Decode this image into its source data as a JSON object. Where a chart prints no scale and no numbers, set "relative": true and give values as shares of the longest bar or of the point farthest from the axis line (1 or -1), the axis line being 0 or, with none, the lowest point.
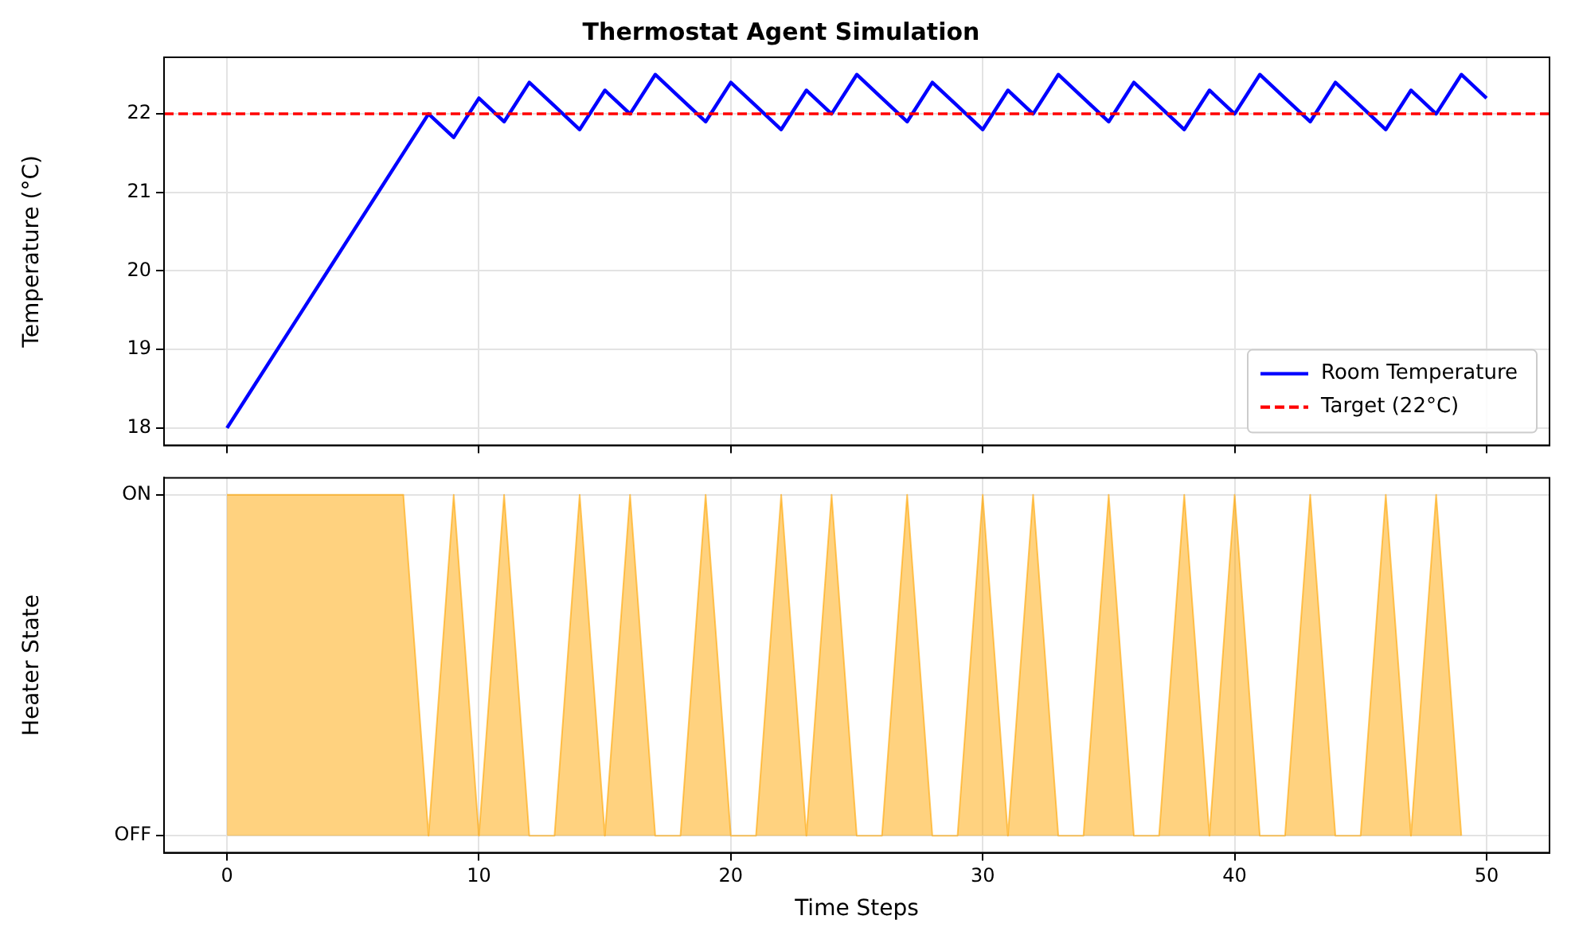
{
  "chart_data": [
    {
      "type": "line",
      "title": "Thermostat Agent Simulation",
      "ylabel": "Temperature (°C)",
      "x": [
        0,
        1,
        2,
        3,
        4,
        5,
        6,
        7,
        8,
        9,
        10,
        11,
        12,
        13,
        14,
        15,
        16,
        17,
        18,
        19,
        20,
        21,
        22,
        23,
        24,
        25,
        26,
        27,
        28,
        29,
        30,
        31,
        32,
        33,
        34,
        35,
        36,
        37,
        38,
        39,
        40,
        41,
        42,
        43,
        44,
        45,
        46,
        47,
        48,
        49,
        50
      ],
      "series": [
        {
          "name": "Room Temperature",
          "color": "#0000ff",
          "values": [
            18,
            18.5,
            19,
            19.5,
            20,
            20.5,
            21,
            21.5,
            22,
            21.7,
            22.2,
            21.9,
            22.4,
            22.1,
            21.8,
            22.3,
            22.0,
            22.5,
            22.2,
            21.9,
            22.4,
            22.1,
            21.8,
            22.3,
            22.0,
            22.5,
            22.2,
            21.9,
            22.4,
            22.1,
            21.8,
            22.3,
            22.0,
            22.5,
            22.2,
            21.9,
            22.4,
            22.1,
            21.8,
            22.3,
            22.0,
            22.5,
            22.2,
            21.9,
            22.4,
            22.1,
            21.8,
            22.3,
            22.0,
            22.5,
            22.2
          ]
        }
      ],
      "ref_lines": [
        {
          "axis": "y",
          "value": 22,
          "label": "Target (22°C)",
          "color": "#ff0000",
          "line_style": "dashed"
        }
      ],
      "xlim": [
        -2.5,
        52.5
      ],
      "xticks": [
        0,
        10,
        20,
        30,
        40,
        50
      ],
      "ylim": [
        17.78,
        22.72
      ],
      "yticks": [
        18,
        19,
        20,
        21,
        22
      ],
      "tick_labels": "y",
      "grid": true,
      "legend": "bottom right",
      "line_style": "solid",
      "marker": "none"
    },
    {
      "type": "area",
      "xlabel": "Time Steps",
      "ylabel": "Heater State",
      "x": [
        0,
        1,
        2,
        3,
        4,
        5,
        6,
        7,
        8,
        9,
        10,
        11,
        12,
        13,
        14,
        15,
        16,
        17,
        18,
        19,
        20,
        21,
        22,
        23,
        24,
        25,
        26,
        27,
        28,
        29,
        30,
        31,
        32,
        33,
        34,
        35,
        36,
        37,
        38,
        39,
        40,
        41,
        42,
        43,
        44,
        45,
        46,
        47,
        48,
        49
      ],
      "series": [
        {
          "color": "#ffa500",
          "values": [
            1,
            1,
            1,
            1,
            1,
            1,
            1,
            1,
            0,
            1,
            0,
            1,
            0,
            0,
            1,
            0,
            1,
            0,
            0,
            1,
            0,
            0,
            1,
            0,
            1,
            0,
            0,
            1,
            0,
            0,
            1,
            0,
            1,
            0,
            0,
            1,
            0,
            0,
            1,
            0,
            1,
            0,
            0,
            1,
            0,
            0,
            1,
            0,
            1,
            0
          ]
        }
      ],
      "xlim": [
        -2.5,
        52.5
      ],
      "xticks": [
        0,
        10,
        20,
        30,
        40,
        50
      ],
      "relative": true,
      "annotations": [
        "OFF",
        "ON"
      ],
      "grid": true,
      "legend": false
    }
  ]
}
